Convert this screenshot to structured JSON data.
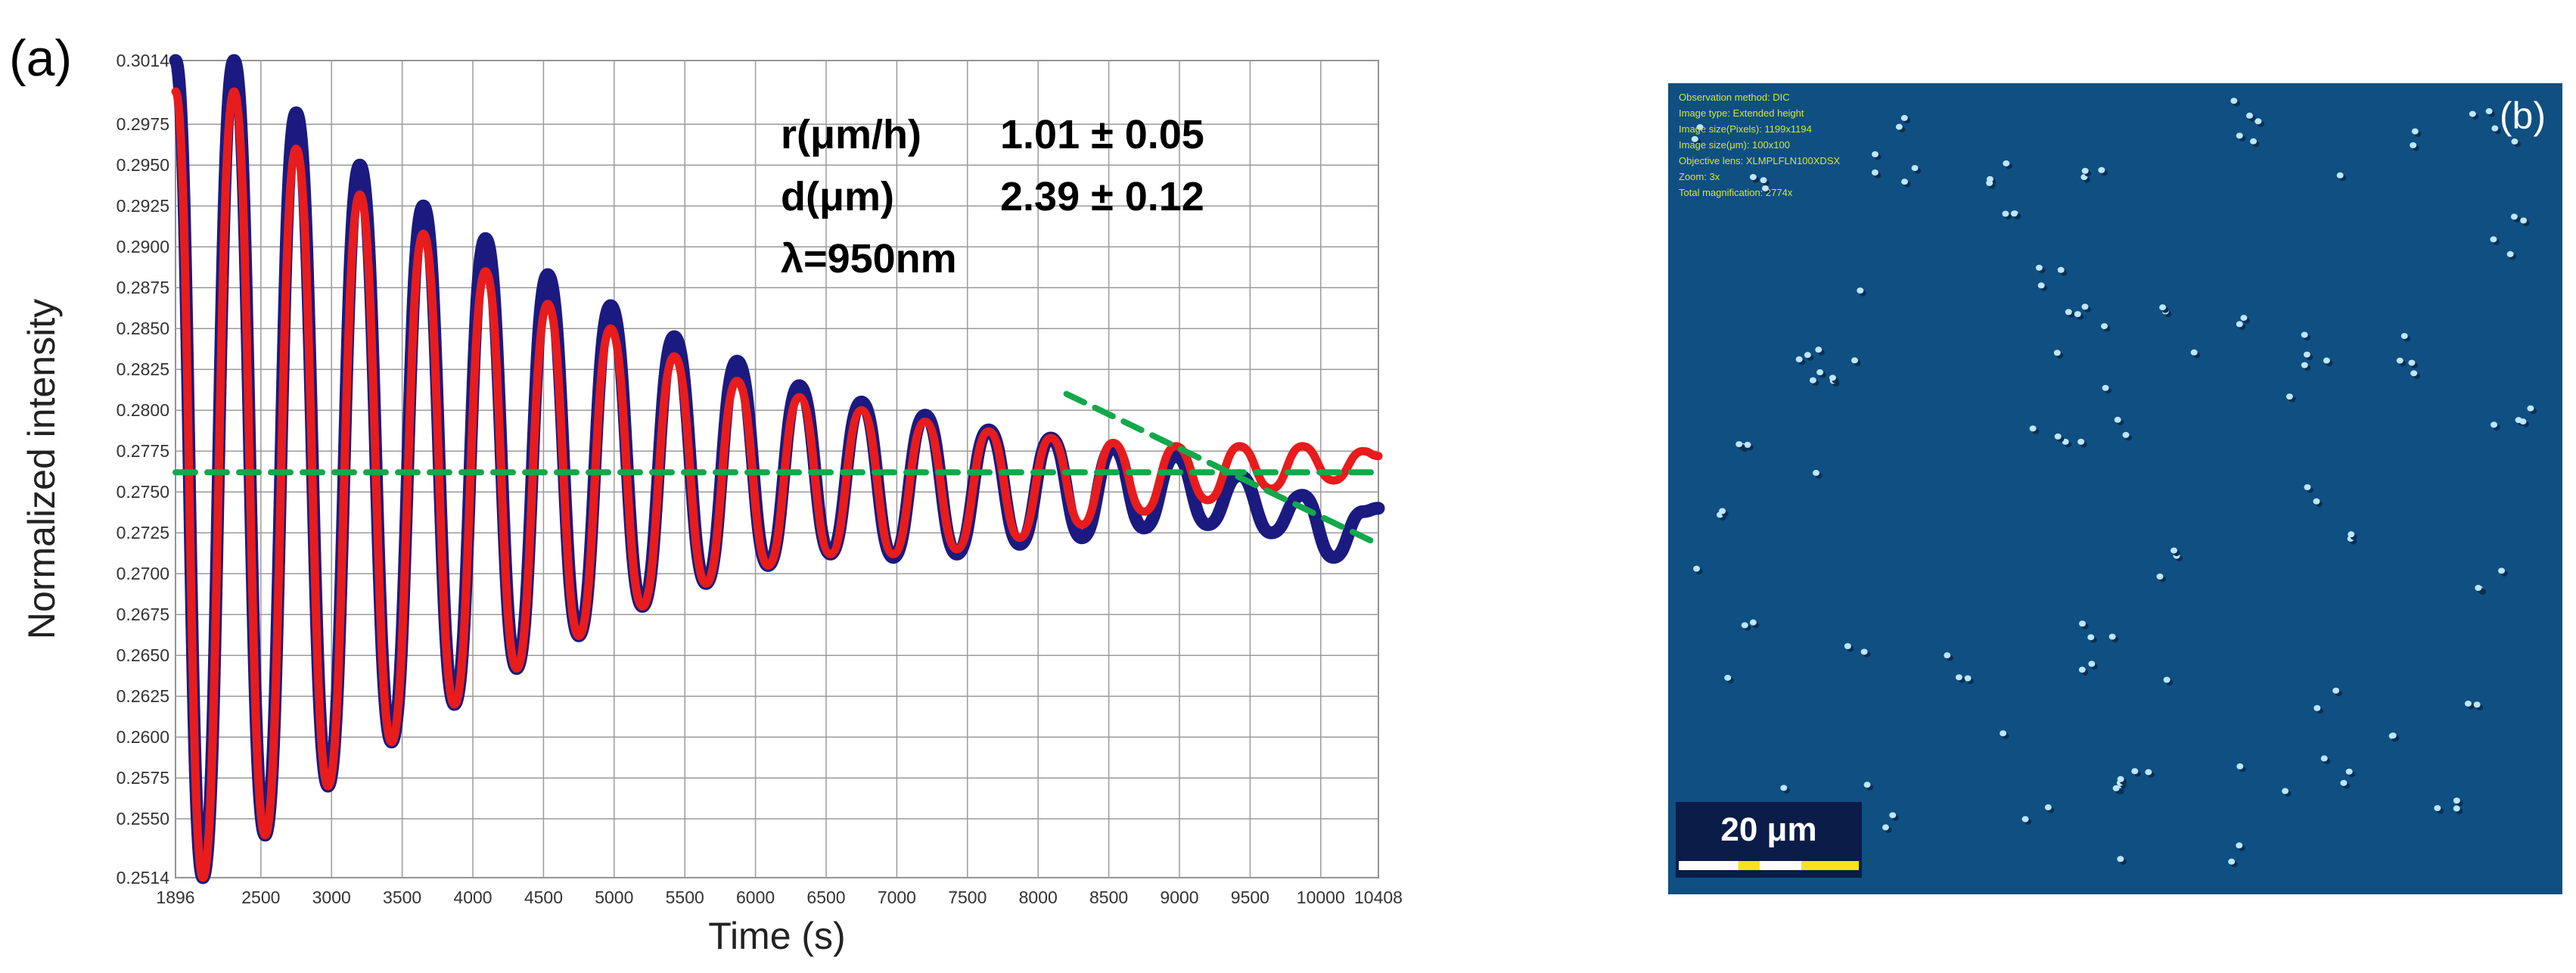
{
  "chart_data": {
    "type": "line",
    "panel_label": "(a)",
    "xlabel": "Time (s)",
    "ylabel": "Normalized intensity",
    "xlim": [
      1896,
      10408
    ],
    "ylim": [
      0.2514,
      0.3014
    ],
    "x_ticks": [
      "1896",
      "2500",
      "3000",
      "3500",
      "4000",
      "4500",
      "5000",
      "5500",
      "6000",
      "6500",
      "7000",
      "7500",
      "8000",
      "8500",
      "9000",
      "9500",
      "10000",
      "10408"
    ],
    "y_ticks": [
      "0.3014",
      "0.2975",
      "0.2950",
      "0.2925",
      "0.2900",
      "0.2875",
      "0.2850",
      "0.2825",
      "0.2800",
      "0.2775",
      "0.2750",
      "0.2725",
      "0.2700",
      "0.2675",
      "0.2650",
      "0.2625",
      "0.2600",
      "0.2575",
      "0.2550",
      "0.2514"
    ],
    "grid": true,
    "annotations": [
      {
        "label": "r(μm/h)",
        "value": "1.01 ± 0.05"
      },
      {
        "label": "d(μm)",
        "value": "2.39 ± 0.12"
      },
      {
        "label": "λ=950nm",
        "value": ""
      }
    ],
    "series": [
      {
        "color": "#1a1a80",
        "x": [
          1896,
          2090,
          2310,
          2530,
          2750,
          2975,
          3200,
          3425,
          3650,
          3870,
          4090,
          4310,
          4530,
          4750,
          4975,
          5200,
          5425,
          5650,
          5870,
          6090,
          6310,
          6530,
          6750,
          6975,
          7200,
          7425,
          7650,
          7870,
          8090,
          8310,
          8530,
          8750,
          8975,
          9200,
          9425,
          9650,
          9870,
          10090,
          10300,
          10408
        ],
        "y": [
          0.3014,
          0.2514,
          0.3014,
          0.254,
          0.2982,
          0.257,
          0.295,
          0.2597,
          0.2925,
          0.262,
          0.2905,
          0.2642,
          0.2883,
          0.2662,
          0.2864,
          0.268,
          0.2845,
          0.2694,
          0.283,
          0.2705,
          0.2815,
          0.2712,
          0.2805,
          0.271,
          0.2797,
          0.2712,
          0.2788,
          0.2718,
          0.2783,
          0.2722,
          0.2777,
          0.2728,
          0.2772,
          0.273,
          0.276,
          0.2725,
          0.2748,
          0.271,
          0.2738,
          0.274
        ]
      },
      {
        "color": "#e81c1c",
        "x": [
          1896,
          2090,
          2310,
          2530,
          2750,
          2975,
          3200,
          3425,
          3650,
          3870,
          4090,
          4310,
          4530,
          4750,
          4975,
          5200,
          5425,
          5650,
          5870,
          6090,
          6310,
          6530,
          6750,
          6975,
          7200,
          7425,
          7650,
          7870,
          8090,
          8310,
          8530,
          8750,
          8975,
          9200,
          9425,
          9650,
          9870,
          10090,
          10300,
          10408
        ],
        "y": [
          0.2995,
          0.2514,
          0.2995,
          0.254,
          0.296,
          0.257,
          0.2932,
          0.2597,
          0.2908,
          0.262,
          0.2885,
          0.2642,
          0.2865,
          0.2662,
          0.285,
          0.268,
          0.2833,
          0.2694,
          0.2818,
          0.2705,
          0.2808,
          0.2712,
          0.28,
          0.2712,
          0.2793,
          0.2715,
          0.2787,
          0.2722,
          0.2783,
          0.273,
          0.278,
          0.2738,
          0.2778,
          0.2745,
          0.2778,
          0.2752,
          0.2778,
          0.2757,
          0.2775,
          0.2772
        ]
      },
      {
        "color": "#13a84a",
        "style": "dashed",
        "x": [
          1896,
          10408
        ],
        "y": [
          0.2762,
          0.2762
        ]
      },
      {
        "color": "#13a84a",
        "style": "dashed",
        "x": [
          8200,
          10408
        ],
        "y": [
          0.281,
          0.2718
        ]
      }
    ]
  },
  "panel_b": {
    "label": "(b)",
    "colors": {
      "background": "#0f4f82",
      "caption_text": "#d4e830"
    },
    "metadata_lines": [
      "Observation method: DIC",
      "Image type: Extended height",
      "Image size(Pixels): 1199x1194",
      "Image size(μm): 100x100",
      "Objective lens: XLMPLFLN100XDSX",
      "Zoom: 3x",
      "Total magnification: 2774x"
    ],
    "scale_bar": "20 μm"
  }
}
